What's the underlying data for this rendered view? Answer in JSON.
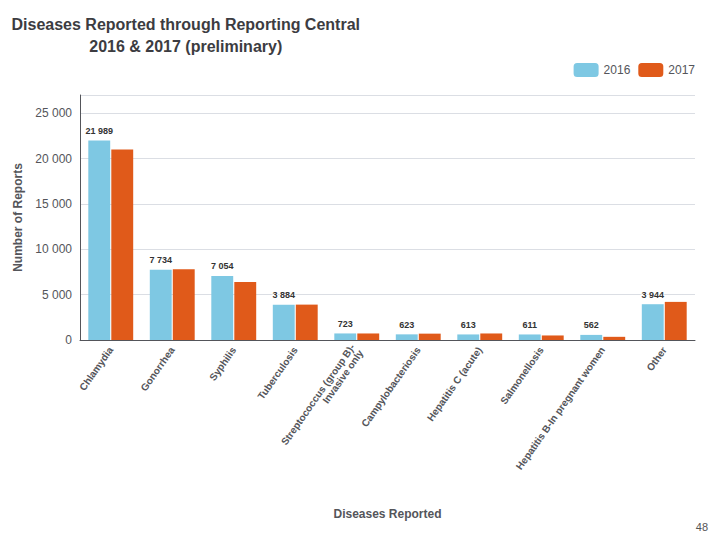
{
  "chart_data": {
    "type": "bar",
    "title": "Diseases Reported through Reporting Central\n2016 & 2017 (preliminary)",
    "xlabel": "Diseases Reported",
    "ylabel": "Number of Reports",
    "categories": [
      "Chlamydia",
      "Gonorrhea",
      "Syphilis",
      "Tuberculosis",
      "Streptococcus (group B)-\nInvasive only",
      "Campylobacteriosis",
      "Hepatitis C (acute)",
      "Salmonellosis",
      "Hepatitis B-In pregnant women",
      "Other"
    ],
    "series": [
      {
        "name": "2016",
        "color": "#7ec8e3",
        "values": [
          21989,
          7734,
          7054,
          3884,
          723,
          623,
          613,
          611,
          562,
          3944
        ],
        "data_labels": true,
        "value_labels": [
          "21 989",
          "7 734",
          "7 054",
          "3 884",
          "723",
          "623",
          "613",
          "611",
          "562",
          "3 944"
        ]
      },
      {
        "name": "2017",
        "color": "#e05a1a",
        "values": [
          21000,
          7800,
          6400,
          3900,
          720,
          700,
          720,
          500,
          350,
          4200
        ]
      }
    ],
    "ylim": [
      0,
      27000
    ],
    "yticks": [
      0,
      {
        "value": 5000,
        "label": "5 000"
      },
      {
        "value": 10000,
        "label": "10 000"
      },
      {
        "value": 15000,
        "label": "15 000"
      },
      {
        "value": 20000,
        "label": "20 000"
      },
      {
        "value": 25000,
        "label": "25 000"
      }
    ],
    "grid": true,
    "legend": "upper right",
    "annotations": [
      {
        "text": "48"
      }
    ]
  }
}
